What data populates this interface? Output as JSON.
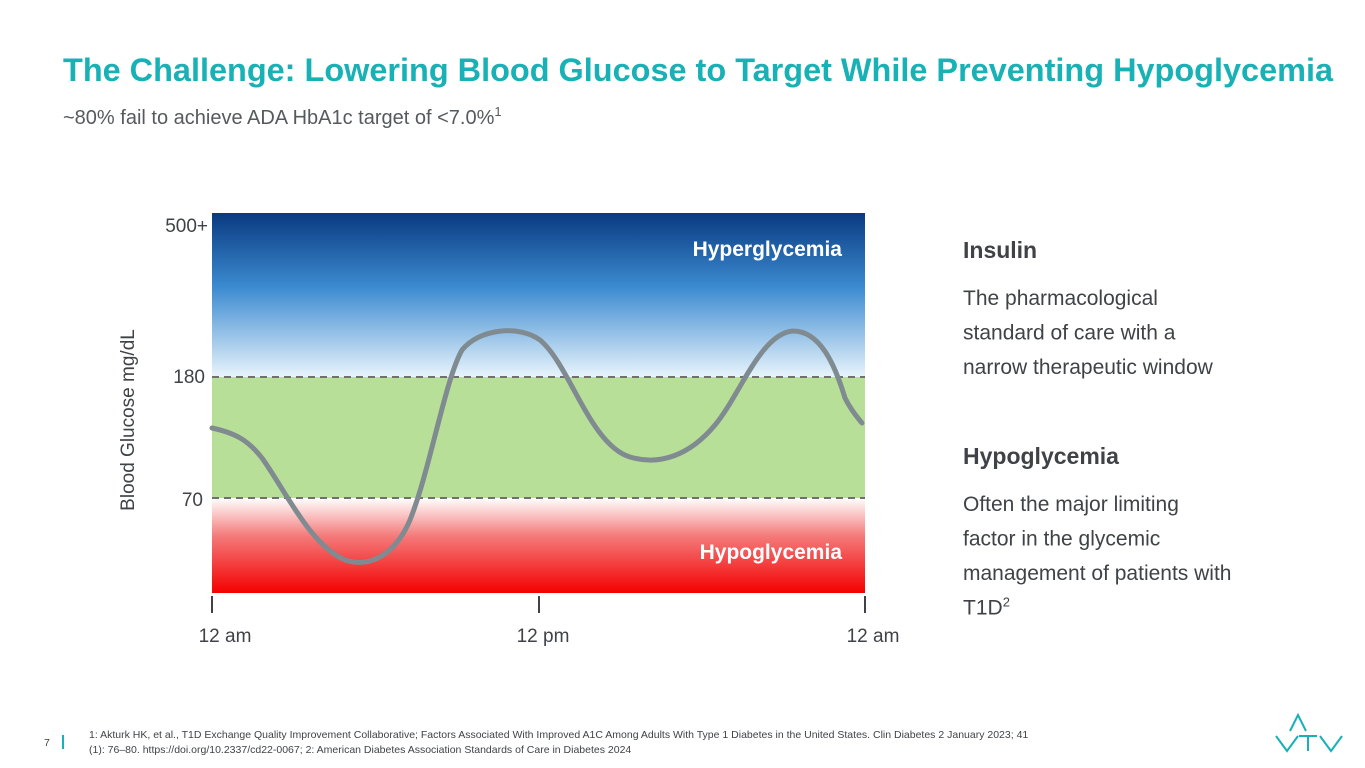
{
  "header": {
    "title": "The Challenge: Lowering Blood Glucose to Target  While Preventing Hypoglycemia",
    "subtitle": "~80% fail to achieve ADA HbA1c target of <7.0%",
    "subtitle_ref": "1"
  },
  "diagram": {
    "y_axis_title": "Blood Glucose mg/dL",
    "y_labels": [
      "500+",
      "180",
      "70"
    ],
    "x_labels": [
      "12 am",
      "12 pm",
      "12 am"
    ],
    "zones": [
      "Hyperglycemia",
      "Hypoglycemia"
    ]
  },
  "sidebar": [
    {
      "heading": "Insulin",
      "lines": [
        "The pharmacological",
        "standard of care with a",
        "narrow therapeutic window"
      ]
    },
    {
      "heading": "Hypoglycemia",
      "lines": [
        "Often the major limiting",
        "factor in the glycemic",
        "management of patients with",
        "T1D"
      ],
      "ref": "2"
    }
  ],
  "footer": {
    "page": "7",
    "notes": [
      "1: Akturk HK, et al., T1D Exchange Quality Improvement Collaborative; Factors Associated With Improved A1C Among Adults With Type 1 Diabetes in the United States. Clin Diabetes 2 January 2023; 41",
      "(1): 76–80. https://doi.org/10.2337/cd22-0067; 2: American Diabetes Association Standards of Care in Diabetes 2024"
    ]
  }
}
